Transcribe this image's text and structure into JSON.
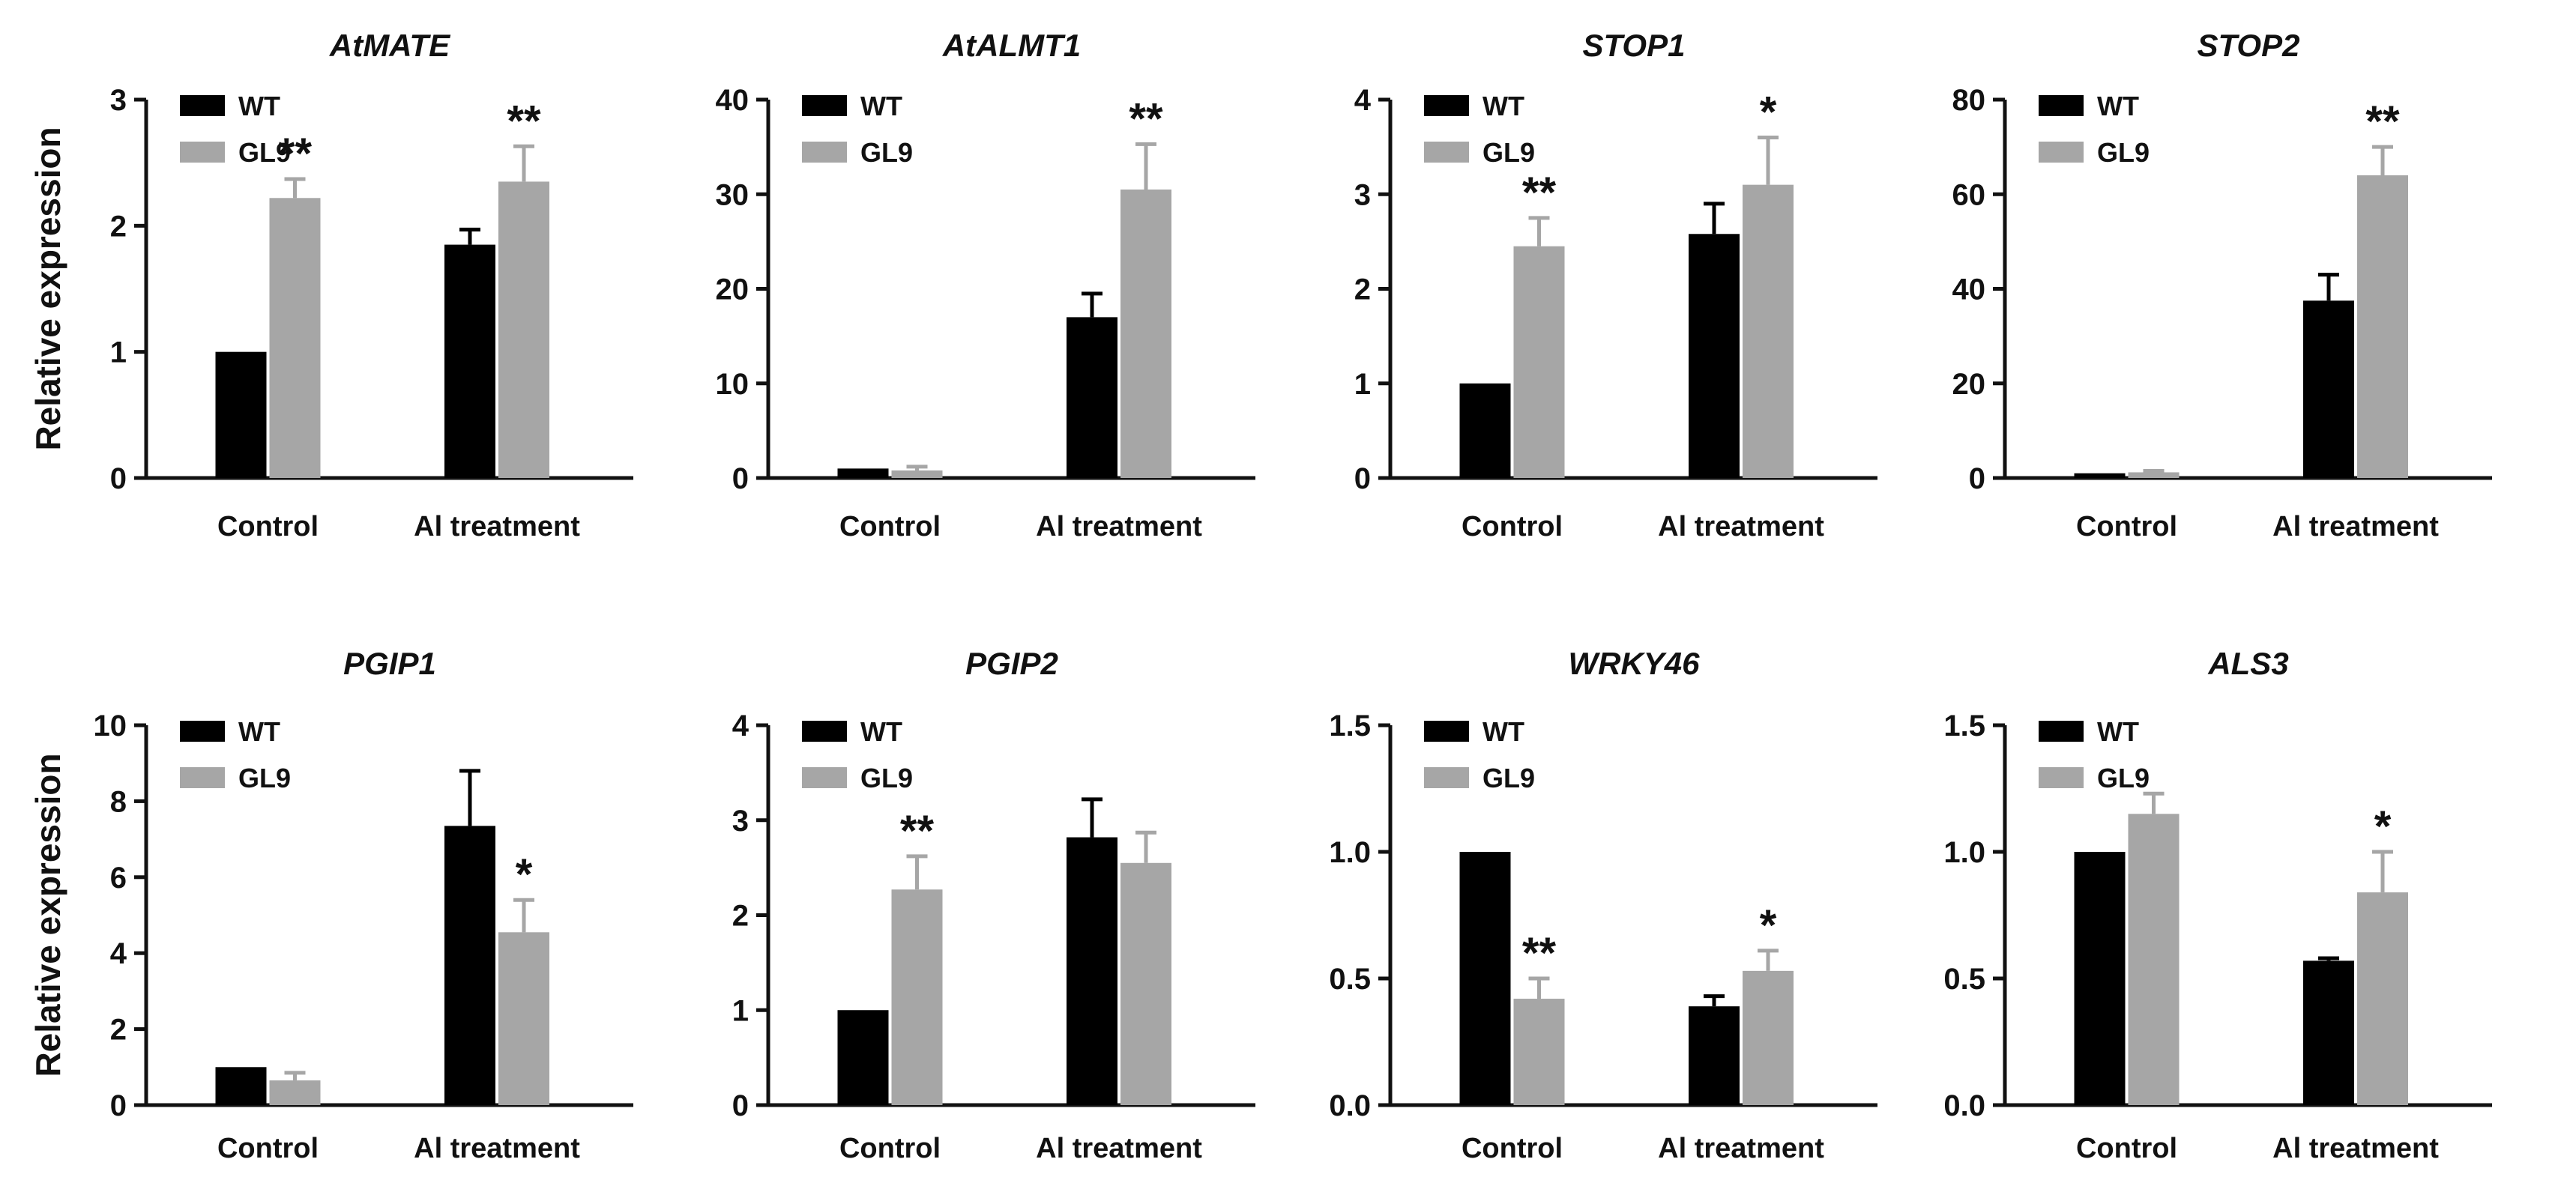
{
  "figure": {
    "y_axis_label": "Relative expression",
    "categories": [
      "Control",
      "Al treatment"
    ],
    "legend": [
      "WT",
      "GL9"
    ],
    "colors": {
      "WT": "#000000",
      "GL9": "#a6a6a6",
      "axis": "#111111"
    }
  },
  "chart_data": [
    {
      "type": "bar",
      "title": "AtMATE",
      "ylabel": "Relative expression",
      "xlabel": "",
      "categories": [
        "Control",
        "Al treatment"
      ],
      "ylim": [
        0,
        3
      ],
      "yticks": [
        "0",
        "1",
        "2",
        "3"
      ],
      "legend_position": "top-left",
      "series": [
        {
          "name": "WT",
          "values": [
            1.0,
            1.85
          ],
          "errors": [
            0,
            0.12
          ],
          "sig": [
            "",
            ""
          ]
        },
        {
          "name": "GL9",
          "values": [
            2.22,
            2.35
          ],
          "errors": [
            0.15,
            0.28
          ],
          "sig": [
            "**",
            "**"
          ]
        }
      ]
    },
    {
      "type": "bar",
      "title": "AtALMT1",
      "ylabel": "",
      "xlabel": "",
      "categories": [
        "Control",
        "Al treatment"
      ],
      "ylim": [
        0,
        40
      ],
      "yticks": [
        "0",
        "10",
        "20",
        "30",
        "40"
      ],
      "legend_position": "top-left",
      "series": [
        {
          "name": "WT",
          "values": [
            1.0,
            17.0
          ],
          "errors": [
            0,
            2.5
          ],
          "sig": [
            "",
            ""
          ]
        },
        {
          "name": "GL9",
          "values": [
            0.8,
            30.5
          ],
          "errors": [
            0.4,
            4.8
          ],
          "sig": [
            "",
            "**"
          ]
        }
      ]
    },
    {
      "type": "bar",
      "title": "STOP1",
      "ylabel": "",
      "xlabel": "",
      "categories": [
        "Control",
        "Al treatment"
      ],
      "ylim": [
        0,
        4
      ],
      "yticks": [
        "0",
        "1",
        "2",
        "3",
        "4"
      ],
      "legend_position": "top-left",
      "series": [
        {
          "name": "WT",
          "values": [
            1.0,
            2.58
          ],
          "errors": [
            0,
            0.32
          ],
          "sig": [
            "",
            ""
          ]
        },
        {
          "name": "GL9",
          "values": [
            2.45,
            3.1
          ],
          "errors": [
            0.3,
            0.5
          ],
          "sig": [
            "**",
            "*"
          ]
        }
      ]
    },
    {
      "type": "bar",
      "title": "STOP2",
      "ylabel": "",
      "xlabel": "",
      "categories": [
        "Control",
        "Al treatment"
      ],
      "ylim": [
        0,
        80
      ],
      "yticks": [
        "0",
        "20",
        "40",
        "60",
        "80"
      ],
      "legend_position": "top-left",
      "series": [
        {
          "name": "WT",
          "values": [
            1.0,
            37.5
          ],
          "errors": [
            0,
            5.5
          ],
          "sig": [
            "",
            ""
          ]
        },
        {
          "name": "GL9",
          "values": [
            1.2,
            64.0
          ],
          "errors": [
            0.3,
            6.0
          ],
          "sig": [
            "",
            "**"
          ]
        }
      ]
    },
    {
      "type": "bar",
      "title": "PGIP1",
      "ylabel": "Relative expression",
      "xlabel": "",
      "categories": [
        "Control",
        "Al treatment"
      ],
      "ylim": [
        0,
        10
      ],
      "yticks": [
        "0",
        "2",
        "4",
        "6",
        "8",
        "10"
      ],
      "legend_position": "top-left",
      "series": [
        {
          "name": "WT",
          "values": [
            1.0,
            7.35
          ],
          "errors": [
            0,
            1.45
          ],
          "sig": [
            "",
            ""
          ]
        },
        {
          "name": "GL9",
          "values": [
            0.65,
            4.55
          ],
          "errors": [
            0.2,
            0.85
          ],
          "sig": [
            "",
            "*"
          ]
        }
      ]
    },
    {
      "type": "bar",
      "title": "PGIP2",
      "ylabel": "",
      "xlabel": "",
      "categories": [
        "Control",
        "Al treatment"
      ],
      "ylim": [
        0,
        4
      ],
      "yticks": [
        "0",
        "1",
        "2",
        "3",
        "4"
      ],
      "legend_position": "top-left",
      "series": [
        {
          "name": "WT",
          "values": [
            1.0,
            2.82
          ],
          "errors": [
            0,
            0.4
          ],
          "sig": [
            "",
            ""
          ]
        },
        {
          "name": "GL9",
          "values": [
            2.27,
            2.55
          ],
          "errors": [
            0.35,
            0.32
          ],
          "sig": [
            "**",
            ""
          ]
        }
      ]
    },
    {
      "type": "bar",
      "title": "WRKY46",
      "ylabel": "",
      "xlabel": "",
      "categories": [
        "Control",
        "Al treatment"
      ],
      "ylim": [
        0,
        1.5
      ],
      "yticks": [
        "0.0",
        "0.5",
        "1.0",
        "1.5"
      ],
      "legend_position": "top-left",
      "series": [
        {
          "name": "WT",
          "values": [
            1.0,
            0.39
          ],
          "errors": [
            0,
            0.04
          ],
          "sig": [
            "",
            ""
          ]
        },
        {
          "name": "GL9",
          "values": [
            0.42,
            0.53
          ],
          "errors": [
            0.08,
            0.08
          ],
          "sig": [
            "**",
            "*"
          ]
        }
      ]
    },
    {
      "type": "bar",
      "title": "ALS3",
      "ylabel": "",
      "xlabel": "",
      "categories": [
        "Control",
        "Al treatment"
      ],
      "ylim": [
        0,
        1.5
      ],
      "yticks": [
        "0.0",
        "0.5",
        "1.0",
        "1.5"
      ],
      "legend_position": "top-left",
      "series": [
        {
          "name": "WT",
          "values": [
            1.0,
            0.57
          ],
          "errors": [
            0,
            0.01
          ],
          "sig": [
            "",
            ""
          ]
        },
        {
          "name": "GL9",
          "values": [
            1.15,
            0.84
          ],
          "errors": [
            0.08,
            0.16
          ],
          "sig": [
            "",
            "*"
          ]
        }
      ]
    }
  ]
}
